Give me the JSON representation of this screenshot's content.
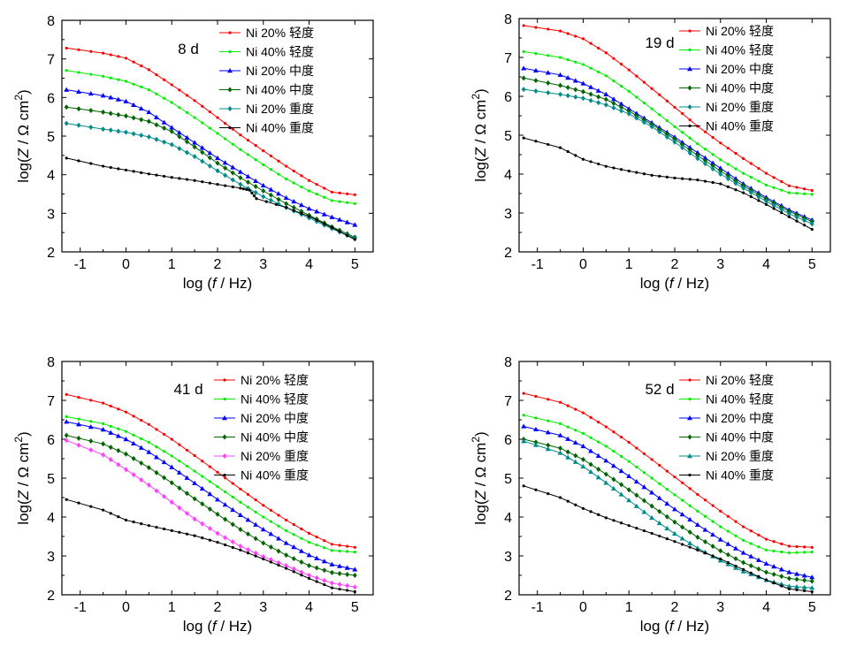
{
  "figure": {
    "x_label_prefix": "log (",
    "x_label_var": "f",
    "x_label_suffix": " / Hz)"
  },
  "chart_data": [
    {
      "type": "line",
      "annotation": "8 d",
      "xlabel": "log (f / Hz)",
      "ylabel": "log(Z / Ω cm²)",
      "xlim": [
        -1.4,
        5.4
      ],
      "ylim": [
        2,
        8
      ],
      "xticks": [
        -1,
        0,
        1,
        2,
        3,
        4,
        5
      ],
      "yticks": [
        2,
        3,
        4,
        5,
        6,
        7,
        8
      ],
      "series": [
        {
          "name": "Ni 20%  轻度",
          "color": "#ff0000",
          "marker": "dot",
          "x": [
            -1.3,
            -0.5,
            0,
            0.5,
            1,
            1.5,
            2,
            2.5,
            3,
            3.5,
            4,
            4.5,
            5
          ],
          "y": [
            7.28,
            7.15,
            7.02,
            6.72,
            6.33,
            5.92,
            5.48,
            5.03,
            4.62,
            4.22,
            3.85,
            3.55,
            3.48
          ]
        },
        {
          "name": "Ni 40%  轻度",
          "color": "#00ee00",
          "marker": "dot",
          "x": [
            -1.3,
            -0.5,
            0,
            0.5,
            1,
            1.5,
            2,
            2.5,
            3,
            3.5,
            4,
            4.5,
            5
          ],
          "y": [
            6.7,
            6.55,
            6.42,
            6.2,
            5.87,
            5.48,
            5.07,
            4.65,
            4.26,
            3.89,
            3.58,
            3.33,
            3.25
          ]
        },
        {
          "name": "Ni 20%  中度",
          "color": "#0000ff",
          "marker": "triangle",
          "x": [
            -1.3,
            -0.5,
            0,
            0.5,
            1,
            1.5,
            2,
            2.5,
            3,
            3.5,
            4,
            4.5,
            5
          ],
          "y": [
            6.2,
            6.05,
            5.9,
            5.62,
            5.22,
            4.83,
            4.43,
            4.07,
            3.72,
            3.4,
            3.12,
            2.9,
            2.7
          ]
        },
        {
          "name": "Ni 40%  中度",
          "color": "#006400",
          "marker": "diamond",
          "x": [
            -1.3,
            -0.5,
            0,
            0.5,
            1,
            1.5,
            2,
            2.5,
            3,
            3.5,
            4,
            4.5,
            5
          ],
          "y": [
            5.75,
            5.62,
            5.52,
            5.38,
            5.12,
            4.72,
            4.3,
            3.92,
            3.58,
            3.25,
            2.95,
            2.65,
            2.38
          ]
        },
        {
          "name": "Ni 20%  重度",
          "color": "#008b8b",
          "marker": "diamond",
          "x": [
            -1.3,
            -0.5,
            0,
            0.5,
            1,
            1.5,
            2,
            2.5,
            3,
            3.5,
            4,
            4.5,
            5
          ],
          "y": [
            5.33,
            5.18,
            5.1,
            4.98,
            4.78,
            4.47,
            4.1,
            3.75,
            3.43,
            3.15,
            2.88,
            2.6,
            2.35
          ]
        },
        {
          "name": "Ni 40%  重度",
          "color": "#000000",
          "marker": "dot",
          "x": [
            -1.3,
            -0.5,
            0,
            0.5,
            1,
            1.5,
            2,
            2.5,
            2.7,
            2.85,
            3.5,
            4,
            4.5,
            5
          ],
          "y": [
            4.43,
            4.22,
            4.12,
            4.02,
            3.93,
            3.85,
            3.75,
            3.65,
            3.6,
            3.38,
            3.15,
            2.92,
            2.63,
            2.32
          ]
        }
      ]
    },
    {
      "type": "line",
      "annotation": "19 d",
      "xlabel": "log (f / Hz)",
      "ylabel": "log(Z / Ω cm²)",
      "xlim": [
        -1.4,
        5.4
      ],
      "ylim": [
        2,
        8
      ],
      "xticks": [
        -1,
        0,
        1,
        2,
        3,
        4,
        5
      ],
      "yticks": [
        2,
        3,
        4,
        5,
        6,
        7,
        8
      ],
      "series": [
        {
          "name": "Ni 20%  轻度",
          "color": "#ff0000",
          "marker": "dot",
          "x": [
            -1.3,
            -0.5,
            0,
            0.5,
            1,
            1.5,
            2,
            2.5,
            3,
            3.5,
            4,
            4.5,
            5
          ],
          "y": [
            7.82,
            7.68,
            7.48,
            7.12,
            6.68,
            6.2,
            5.72,
            5.23,
            4.8,
            4.4,
            4.02,
            3.7,
            3.58
          ]
        },
        {
          "name": "Ni 40%  轻度",
          "color": "#00ee00",
          "marker": "dot",
          "x": [
            -1.3,
            -0.5,
            0,
            0.5,
            1,
            1.5,
            2,
            2.5,
            3,
            3.5,
            4,
            4.5,
            5
          ],
          "y": [
            7.15,
            7.0,
            6.82,
            6.53,
            6.13,
            5.68,
            5.22,
            4.78,
            4.37,
            4.02,
            3.72,
            3.52,
            3.48
          ]
        },
        {
          "name": "Ni 20%  中度",
          "color": "#0000ff",
          "marker": "triangle",
          "x": [
            -1.3,
            -0.5,
            0,
            0.5,
            1,
            1.5,
            2,
            2.5,
            3,
            3.5,
            4,
            4.5,
            5
          ],
          "y": [
            6.72,
            6.55,
            6.33,
            6.05,
            5.68,
            5.32,
            4.95,
            4.55,
            4.15,
            3.75,
            3.4,
            3.08,
            2.82
          ]
        },
        {
          "name": "Ni 40%  中度",
          "color": "#006400",
          "marker": "diamond",
          "x": [
            -1.3,
            -0.5,
            0,
            0.5,
            1,
            1.5,
            2,
            2.5,
            3,
            3.5,
            4,
            4.5,
            5
          ],
          "y": [
            6.47,
            6.28,
            6.12,
            5.92,
            5.62,
            5.28,
            4.9,
            4.48,
            4.08,
            3.7,
            3.36,
            3.04,
            2.78
          ]
        },
        {
          "name": "Ni 20%  重度",
          "color": "#008b8b",
          "marker": "diamond",
          "x": [
            -1.3,
            -0.5,
            0,
            0.5,
            1,
            1.5,
            2,
            2.5,
            3,
            3.5,
            4,
            4.5,
            5
          ],
          "y": [
            6.18,
            6.05,
            5.95,
            5.78,
            5.55,
            5.22,
            4.82,
            4.4,
            4.0,
            3.64,
            3.3,
            2.98,
            2.72
          ]
        },
        {
          "name": "Ni 40%  重度",
          "color": "#000000",
          "marker": "dot",
          "x": [
            -1.3,
            -0.5,
            0,
            0.5,
            1,
            1.5,
            2,
            2.5,
            3,
            3.5,
            4,
            4.5,
            5
          ],
          "y": [
            4.93,
            4.68,
            4.38,
            4.2,
            4.08,
            3.97,
            3.9,
            3.85,
            3.75,
            3.52,
            3.22,
            2.9,
            2.58
          ]
        }
      ]
    },
    {
      "type": "line",
      "annotation": "41 d",
      "xlabel": "log (f / Hz)",
      "ylabel": "log(Z / Ω cm²)",
      "xlim": [
        -1.4,
        5.4
      ],
      "ylim": [
        2,
        8
      ],
      "xticks": [
        -1,
        0,
        1,
        2,
        3,
        4,
        5
      ],
      "yticks": [
        2,
        3,
        4,
        5,
        6,
        7,
        8
      ],
      "series": [
        {
          "name": "Ni 20%  轻度",
          "color": "#ff0000",
          "marker": "dot",
          "x": [
            -1.3,
            -0.5,
            0,
            0.5,
            1,
            1.5,
            2,
            2.5,
            3,
            3.5,
            4,
            4.5,
            5
          ],
          "y": [
            7.15,
            6.93,
            6.7,
            6.38,
            6.0,
            5.58,
            5.15,
            4.72,
            4.3,
            3.92,
            3.58,
            3.3,
            3.22
          ]
        },
        {
          "name": "Ni 40%  轻度",
          "color": "#00ee00",
          "marker": "dot",
          "x": [
            -1.3,
            -0.5,
            0,
            0.5,
            1,
            1.5,
            2,
            2.5,
            3,
            3.5,
            4,
            4.5,
            5
          ],
          "y": [
            6.58,
            6.4,
            6.2,
            5.92,
            5.57,
            5.18,
            4.78,
            4.38,
            4.0,
            3.65,
            3.35,
            3.14,
            3.1
          ]
        },
        {
          "name": "Ni 20%  中度",
          "color": "#0000ff",
          "marker": "triangle",
          "x": [
            -1.3,
            -0.5,
            0,
            0.5,
            1,
            1.5,
            2,
            2.5,
            3,
            3.5,
            4,
            4.5,
            5
          ],
          "y": [
            6.45,
            6.25,
            6.0,
            5.67,
            5.28,
            4.87,
            4.45,
            4.05,
            3.68,
            3.33,
            3.02,
            2.78,
            2.65
          ]
        },
        {
          "name": "Ni 40%  中度",
          "color": "#006400",
          "marker": "diamond",
          "x": [
            -1.3,
            -0.5,
            0,
            0.5,
            1,
            1.5,
            2,
            2.5,
            3,
            3.5,
            4,
            4.5,
            5
          ],
          "y": [
            6.1,
            5.88,
            5.62,
            5.27,
            4.88,
            4.47,
            4.07,
            3.68,
            3.33,
            3.02,
            2.75,
            2.57,
            2.5
          ]
        },
        {
          "name": "Ni 20%  重度",
          "color": "#ff44ff",
          "marker": "diamond",
          "x": [
            -1.3,
            -0.5,
            0,
            0.5,
            1,
            1.5,
            2,
            2.5,
            3,
            3.5,
            4,
            4.5,
            5
          ],
          "y": [
            5.97,
            5.6,
            5.22,
            4.82,
            4.38,
            3.95,
            3.58,
            3.25,
            2.98,
            2.75,
            2.5,
            2.3,
            2.2
          ]
        },
        {
          "name": "Ni 40%  重度",
          "color": "#000000",
          "marker": "dot",
          "x": [
            -1.3,
            -0.5,
            0,
            0.5,
            1,
            1.5,
            2,
            2.5,
            3,
            3.5,
            4,
            4.5,
            5
          ],
          "y": [
            4.45,
            4.18,
            3.92,
            3.78,
            3.65,
            3.52,
            3.35,
            3.15,
            2.92,
            2.68,
            2.42,
            2.18,
            2.08
          ]
        }
      ]
    },
    {
      "type": "line",
      "annotation": "52 d",
      "xlabel": "log (f / Hz)",
      "ylabel": "log(Z / Ω cm²)",
      "xlim": [
        -1.4,
        5.4
      ],
      "ylim": [
        2,
        8
      ],
      "xticks": [
        -1,
        0,
        1,
        2,
        3,
        4,
        5
      ],
      "yticks": [
        2,
        3,
        4,
        5,
        6,
        7,
        8
      ],
      "series": [
        {
          "name": "Ni 20%  轻度",
          "color": "#ff0000",
          "marker": "dot",
          "x": [
            -1.3,
            -0.5,
            0,
            0.5,
            1,
            1.5,
            2,
            2.5,
            3,
            3.5,
            4,
            4.5,
            5
          ],
          "y": [
            7.18,
            6.95,
            6.68,
            6.32,
            5.92,
            5.48,
            5.03,
            4.58,
            4.15,
            3.75,
            3.43,
            3.25,
            3.22
          ]
        },
        {
          "name": "Ni 40%  轻度",
          "color": "#00ee00",
          "marker": "dot",
          "x": [
            -1.3,
            -0.5,
            0,
            0.5,
            1,
            1.5,
            2,
            2.5,
            3,
            3.5,
            4,
            4.5,
            5
          ],
          "y": [
            6.62,
            6.4,
            6.15,
            5.82,
            5.43,
            5.0,
            4.57,
            4.15,
            3.75,
            3.4,
            3.15,
            3.08,
            3.1
          ]
        },
        {
          "name": "Ni 20%  中度",
          "color": "#0000ff",
          "marker": "triangle",
          "x": [
            -1.3,
            -0.5,
            0,
            0.5,
            1,
            1.5,
            2,
            2.5,
            3,
            3.5,
            4,
            4.5,
            5
          ],
          "y": [
            6.33,
            6.1,
            5.82,
            5.45,
            5.05,
            4.63,
            4.2,
            3.8,
            3.42,
            3.08,
            2.8,
            2.58,
            2.45
          ]
        },
        {
          "name": "Ni 40%  中度",
          "color": "#006400",
          "marker": "diamond",
          "x": [
            -1.3,
            -0.5,
            0,
            0.5,
            1,
            1.5,
            2,
            2.5,
            3,
            3.5,
            4,
            4.5,
            5
          ],
          "y": [
            6.0,
            5.77,
            5.48,
            5.1,
            4.7,
            4.28,
            3.87,
            3.48,
            3.13,
            2.83,
            2.58,
            2.42,
            2.35
          ]
        },
        {
          "name": "Ni 20%  重度",
          "color": "#008b8b",
          "marker": "triangle",
          "x": [
            -1.3,
            -0.5,
            0,
            0.5,
            1,
            1.5,
            2,
            2.5,
            3,
            3.5,
            4,
            4.5,
            5
          ],
          "y": [
            5.95,
            5.65,
            5.3,
            4.88,
            4.43,
            3.98,
            3.57,
            3.2,
            2.88,
            2.6,
            2.38,
            2.22,
            2.18
          ]
        },
        {
          "name": "Ni 40%  重度",
          "color": "#000000",
          "marker": "dot",
          "x": [
            -1.3,
            -0.5,
            0,
            0.5,
            1,
            1.5,
            2,
            2.5,
            3,
            3.5,
            4,
            4.5,
            5
          ],
          "y": [
            4.8,
            4.5,
            4.22,
            3.98,
            3.78,
            3.58,
            3.37,
            3.15,
            2.92,
            2.65,
            2.38,
            2.15,
            2.08
          ]
        }
      ]
    }
  ]
}
